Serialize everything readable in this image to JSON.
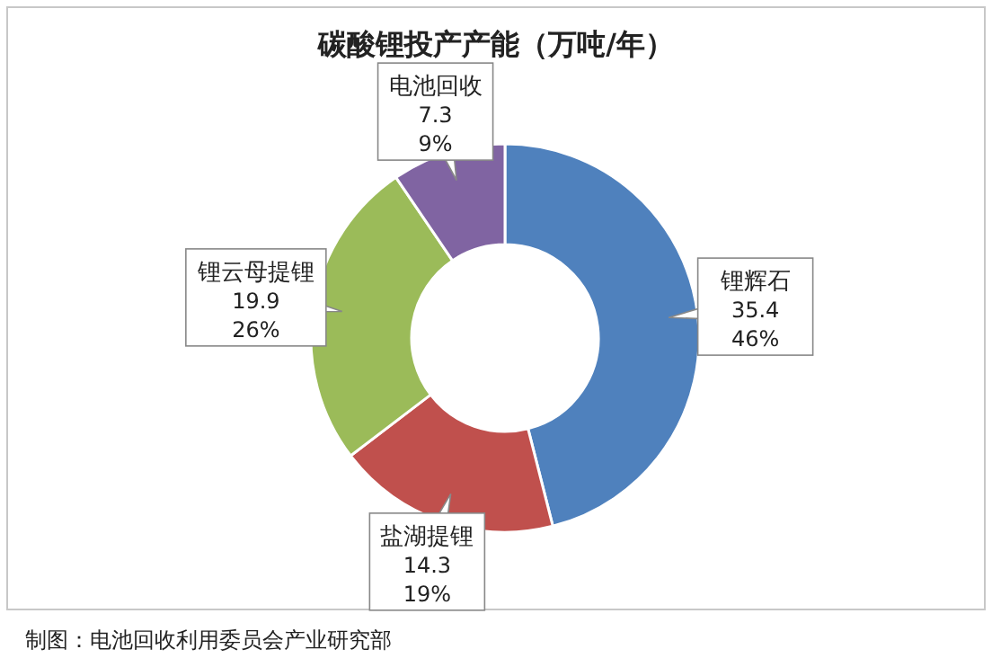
{
  "chart_data": {
    "type": "donut",
    "title": "碳酸锂投产产能（万吨/年）",
    "categories": [
      "锂辉石",
      "盐湖提锂",
      "锂云母提锂",
      "电池回收"
    ],
    "values": [
      35.4,
      14.3,
      19.9,
      7.3
    ],
    "value_labels": [
      "35.4\n46%",
      "14.3\n19%",
      "19.9\n26%",
      "7.3\n9%"
    ],
    "colors": [
      "#4f81bd",
      "#c0504d",
      "#9bbb59",
      "#8064a2"
    ],
    "annotations": [
      "制图：电池回收利用委员会产业研究部"
    ]
  }
}
